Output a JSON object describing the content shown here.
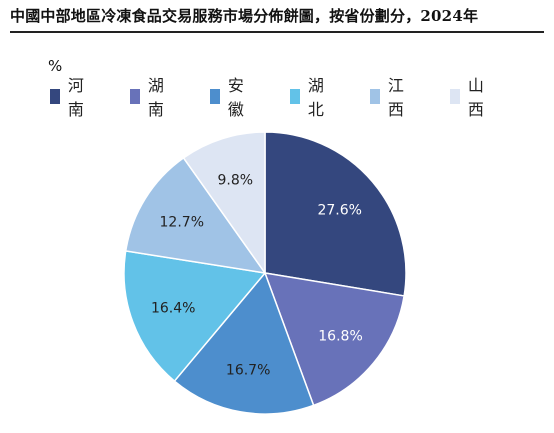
{
  "title": "中國中部地區冷凍食品交易服務市場分佈餅圖，按省份劃分，2024年",
  "unit": "%",
  "chart_data": {
    "type": "pie",
    "categories": [
      "河南",
      "湖南",
      "安徽",
      "湖北",
      "江西",
      "山西"
    ],
    "values": [
      27.6,
      16.8,
      16.7,
      16.4,
      12.7,
      9.8
    ],
    "labels": [
      "27.6%",
      "16.8%",
      "16.7%",
      "16.4%",
      "12.7%",
      "9.8%"
    ],
    "colors": [
      "#34477e",
      "#6872b9",
      "#4d8ecd",
      "#62c2e8",
      "#a0c3e6",
      "#dde5f3"
    ],
    "label_colors": [
      "#ffffff",
      "#ffffff",
      "#222222",
      "#222222",
      "#222222",
      "#222222"
    ],
    "start": "12 o'clock",
    "direction": "clockwise",
    "legend_position": "top"
  }
}
